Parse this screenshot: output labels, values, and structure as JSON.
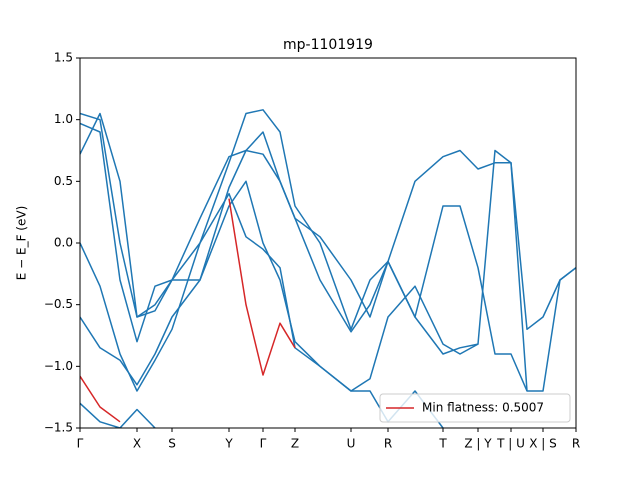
{
  "chart_data": {
    "type": "line",
    "title": "mp-1101919",
    "ylabel": "E − E_F (eV)",
    "x": [
      0,
      0.2,
      0.4,
      0.57,
      0.75,
      0.92,
      1.2,
      1.49,
      1.66,
      1.83,
      2.0,
      2.15,
      2.4,
      2.71,
      2.9,
      3.08,
      3.35,
      3.63,
      3.8,
      3.98,
      4.15,
      4.31,
      4.47,
      4.63,
      4.8,
      4.96
    ],
    "series": [
      {
        "color": "#1f77b4",
        "values": [
          0.72,
          1.05,
          0.5,
          -0.6,
          -0.5,
          -0.3,
          0.2,
          0.7,
          0.75,
          0.72,
          0.5,
          0.2,
          0.05,
          -0.3,
          -0.6,
          -0.15,
          0.5,
          0.7,
          0.75,
          0.6,
          0.65,
          0.65,
          -0.7,
          -0.6,
          -0.3,
          -0.2
        ]
      },
      {
        "color": "#1f77b4",
        "values": [
          1.05,
          1.0,
          0.0,
          -0.6,
          -0.55,
          -0.3,
          0.0,
          0.65,
          1.05,
          1.08,
          0.9,
          0.3,
          0.0,
          -0.7,
          -0.3,
          -0.15,
          -0.6,
          0.3,
          0.3,
          -0.2,
          -0.9,
          -0.9,
          -1.2,
          -1.2,
          -0.3,
          -0.2
        ]
      },
      {
        "color": "#1f77b4",
        "values": [
          0.97,
          0.9,
          -0.3,
          -0.8,
          -0.35,
          -0.3,
          -0.3,
          0.45,
          0.75,
          0.9,
          0.5,
          0.2,
          -0.3,
          -0.72,
          -0.5,
          -0.15,
          -0.6,
          -0.9,
          -0.85,
          -0.82,
          0.75,
          0.65,
          -1.2,
          null,
          null,
          null
        ]
      },
      {
        "color": "#1f77b4",
        "values": [
          0.0,
          -0.35,
          -0.9,
          -1.2,
          -0.95,
          -0.7,
          0.0,
          0.4,
          0.05,
          -0.05,
          -0.2,
          -0.85,
          -1.0,
          -1.2,
          -1.1,
          -0.6,
          -0.35,
          -0.82,
          -0.9,
          -0.82,
          null,
          null,
          null,
          null,
          null,
          null
        ]
      },
      {
        "color": "#1f77b4",
        "values": [
          -0.6,
          -0.85,
          -0.95,
          -1.15,
          -0.9,
          -0.6,
          -0.3,
          0.3,
          0.5,
          0.0,
          -0.3,
          -0.8,
          -1.0,
          -1.2,
          -1.2,
          -1.45,
          -1.2,
          -1.5,
          null,
          null,
          null,
          null,
          null,
          null,
          null,
          null
        ]
      },
      {
        "color": "#1f77b4",
        "values": [
          -1.3,
          -1.45,
          -1.5,
          -1.35,
          -1.5,
          null,
          null,
          null,
          null,
          null,
          null,
          null,
          null,
          null,
          null,
          null,
          null,
          null,
          null,
          null,
          null,
          null,
          null,
          null,
          null,
          null
        ]
      },
      {
        "name": "Min flatness: 0.5007",
        "color": "#d62728",
        "values": [
          -1.08,
          -1.33,
          -1.45,
          null,
          null,
          null,
          null,
          0.36,
          -0.5,
          -1.07,
          -0.65,
          -0.85,
          null,
          null,
          null,
          null,
          null,
          null,
          null,
          null,
          null,
          null,
          null,
          null,
          null,
          null
        ]
      }
    ],
    "xlim": [
      0,
      4.96
    ],
    "xticks": [
      {
        "value": 0,
        "label": "Γ"
      },
      {
        "value": 0.57,
        "label": "X"
      },
      {
        "value": 0.92,
        "label": "S"
      },
      {
        "value": 1.49,
        "label": "Y"
      },
      {
        "value": 1.83,
        "label": "Γ"
      },
      {
        "value": 2.15,
        "label": "Z"
      },
      {
        "value": 2.71,
        "label": "U"
      },
      {
        "value": 3.08,
        "label": "R"
      },
      {
        "value": 3.63,
        "label": "T"
      },
      {
        "value": 3.98,
        "label": "Z | Y"
      },
      {
        "value": 4.31,
        "label": "T | U"
      },
      {
        "value": 4.63,
        "label": "X | S"
      },
      {
        "value": 4.96,
        "label": "R"
      }
    ],
    "ylim": [
      -1.5,
      1.5
    ],
    "yticks": [
      {
        "value": -1.5,
        "label": "−1.5"
      },
      {
        "value": -1.0,
        "label": "−1.0"
      },
      {
        "value": -0.5,
        "label": "−0.5"
      },
      {
        "value": 0,
        "label": "0.0"
      },
      0.5,
      {
        "value": 1.0,
        "label": "1.0"
      },
      1.5
    ],
    "legend": "lower right"
  }
}
